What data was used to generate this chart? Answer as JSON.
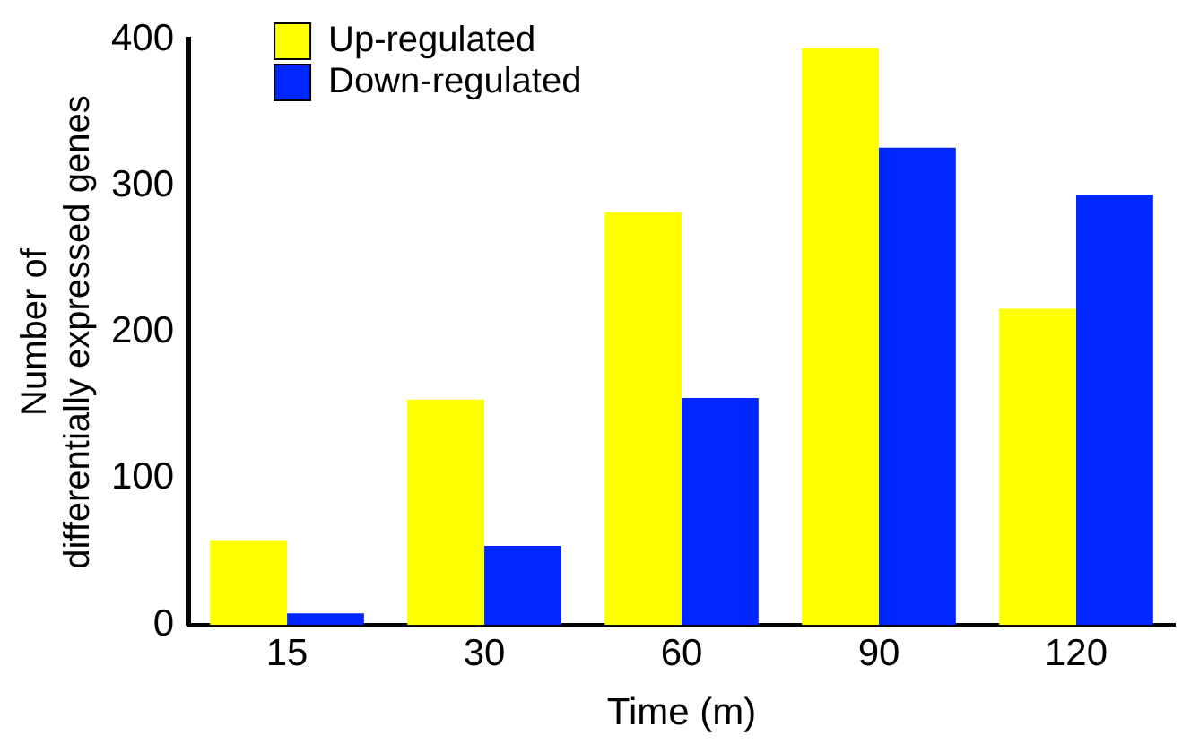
{
  "chart_data": {
    "type": "bar",
    "xlabel": "Time (m)",
    "ylabel": "Number of\ndifferentially expressed genes",
    "categories": [
      "15",
      "30",
      "60",
      "90",
      "120"
    ],
    "series": [
      {
        "name": "Up-regulated",
        "color": "#ffff00",
        "values": [
          58,
          154,
          282,
          394,
          216
        ]
      },
      {
        "name": "Down-regulated",
        "color": "#0026ff",
        "values": [
          8,
          54,
          155,
          326,
          294
        ]
      }
    ],
    "ylim": [
      0,
      400
    ],
    "yticks": [
      0,
      100,
      200,
      300,
      400
    ],
    "grid": false,
    "legend": "top left"
  }
}
